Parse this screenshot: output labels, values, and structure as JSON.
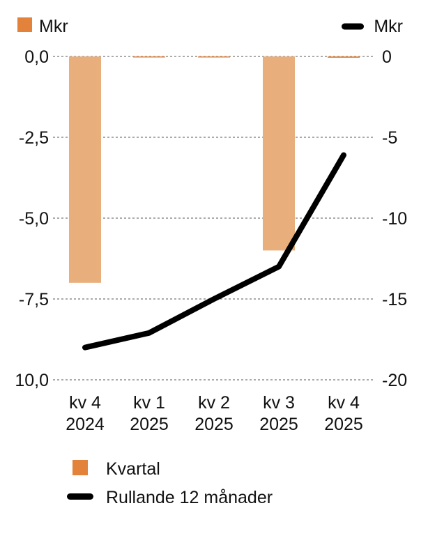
{
  "chart_data": {
    "type": "bar",
    "categories": [
      [
        "kv 4",
        "2024"
      ],
      [
        "kv 1",
        "2025"
      ],
      [
        "kv 2",
        "2025"
      ],
      [
        "kv 3",
        "2025"
      ],
      [
        "kv 4",
        "2025"
      ]
    ],
    "left_axis": {
      "unit": "Mkr",
      "ticks": [
        "0,0",
        "-2,5",
        "-5,0",
        "-7,5",
        "10,0"
      ],
      "ylim": [
        -10,
        0
      ]
    },
    "right_axis": {
      "unit": "Mkr",
      "ticks": [
        "0",
        "-5",
        "-10",
        "-15",
        "-20"
      ],
      "ylim": [
        -20,
        0
      ]
    },
    "series": [
      {
        "name": "Kvartal",
        "kind": "bar",
        "axis": "left",
        "color": "#e8ae7b",
        "legend_color": "#e3823a",
        "values": [
          -7.0,
          -0.03,
          -0.03,
          -6.0,
          -0.04
        ]
      },
      {
        "name": "Rullande 12 månader",
        "kind": "line",
        "axis": "right",
        "color": "#000000",
        "values": [
          -18.0,
          -17.1,
          -15.0,
          -13.0,
          -6.1
        ]
      }
    ],
    "grid": true,
    "legend": "bottom-left"
  }
}
